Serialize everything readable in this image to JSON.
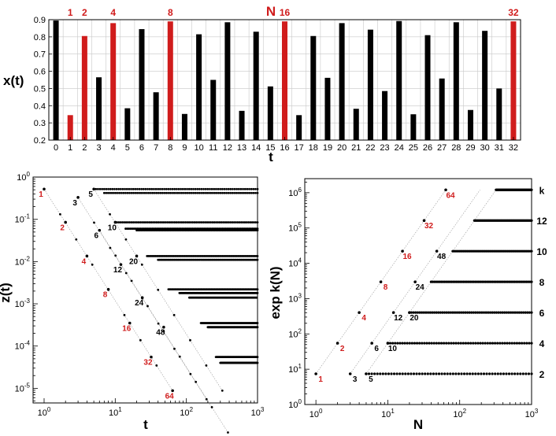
{
  "chart_data": [
    {
      "type": "bar",
      "title": "N",
      "xlabel": "t",
      "ylabel": "x(t)",
      "ylim": [
        0.2,
        0.9
      ],
      "yticks": [
        "0.2",
        "0.3",
        "0.4",
        "0.5",
        "0.6",
        "0.7",
        "0.8",
        "0.9"
      ],
      "categories": [
        "0",
        "1",
        "2",
        "3",
        "4",
        "5",
        "6",
        "7",
        "8",
        "9",
        "10",
        "11",
        "12",
        "13",
        "14",
        "15",
        "16",
        "17",
        "18",
        "19",
        "20",
        "21",
        "22",
        "23",
        "24",
        "25",
        "26",
        "27",
        "28",
        "29",
        "30",
        "31",
        "32"
      ],
      "values": [
        0.895,
        0.345,
        0.805,
        0.565,
        0.88,
        0.385,
        0.845,
        0.478,
        0.89,
        0.352,
        0.815,
        0.55,
        0.885,
        0.37,
        0.83,
        0.512,
        0.89,
        0.345,
        0.805,
        0.562,
        0.88,
        0.382,
        0.842,
        0.485,
        0.892,
        0.35,
        0.81,
        0.558,
        0.885,
        0.375,
        0.835,
        0.5,
        0.89
      ],
      "highlight_categories": [
        "1",
        "2",
        "4",
        "8",
        "16",
        "32"
      ],
      "highlight_labels": [
        "1",
        "2",
        "4",
        "8",
        "16",
        "32"
      ],
      "colors": {
        "normal": "#000000",
        "highlight": "#d01c1c"
      }
    },
    {
      "type": "scatter",
      "xscale": "log",
      "yscale": "log",
      "xlabel": "t",
      "ylabel": "z(t)",
      "xlim": [
        0.7,
        1000
      ],
      "ylim": [
        4.5e-06,
        1
      ],
      "xticks": [
        "10^0",
        "10^1",
        "10^2",
        "10^3"
      ],
      "yticks": [
        "10^-5",
        "10^-4",
        "10^-3",
        "10^-2",
        "10^-1",
        "10^0"
      ],
      "bands": [
        0.52,
        0.42,
        0.085,
        0.06,
        0.055,
        0.0135,
        0.011,
        0.0022,
        0.0018,
        0.0014,
        0.00035,
        0.00028,
        5.5e-05,
        4e-05
      ],
      "labeled_points": [
        {
          "label": "1",
          "t": 1,
          "z": 0.52,
          "color": "red"
        },
        {
          "label": "2",
          "t": 2,
          "z": 0.085,
          "color": "red"
        },
        {
          "label": "4",
          "t": 4,
          "z": 0.0135,
          "color": "red"
        },
        {
          "label": "8",
          "t": 8,
          "z": 0.0022,
          "color": "red"
        },
        {
          "label": "16",
          "t": 16,
          "z": 0.00035,
          "color": "red"
        },
        {
          "label": "32",
          "t": 32,
          "z": 5.5e-05,
          "color": "red"
        },
        {
          "label": "64",
          "t": 64,
          "z": 8.8e-06,
          "color": "red"
        },
        {
          "label": "3",
          "t": 3,
          "z": 0.33,
          "color": "black"
        },
        {
          "label": "5",
          "t": 5,
          "z": 0.52,
          "color": "black"
        },
        {
          "label": "6",
          "t": 6,
          "z": 0.055,
          "color": "black"
        },
        {
          "label": "10",
          "t": 10,
          "z": 0.085,
          "color": "black"
        },
        {
          "label": "12",
          "t": 12,
          "z": 0.0085,
          "color": "black"
        },
        {
          "label": "20",
          "t": 20,
          "z": 0.0135,
          "color": "black"
        },
        {
          "label": "24",
          "t": 24,
          "z": 0.0014,
          "color": "black"
        },
        {
          "label": "48",
          "t": 48,
          "z": 0.00028,
          "color": "black"
        }
      ],
      "guide_lines": [
        {
          "from": [
            1,
            0.52
          ],
          "to": [
            64,
            8.8e-06
          ]
        },
        {
          "from": [
            3,
            0.33
          ],
          "to": [
            192,
            5.5e-06
          ]
        },
        {
          "from": [
            5,
            0.52
          ],
          "to": [
            320,
            8.8e-06
          ]
        },
        {
          "from": [
            6,
            0.055
          ],
          "to": [
            384,
            9e-07
          ]
        }
      ]
    },
    {
      "type": "scatter",
      "xscale": "log",
      "yscale": "log",
      "xlabel": "N",
      "ylabel": "exp k(N)",
      "xlim": [
        0.7,
        1000
      ],
      "ylim": [
        1,
        2500000
      ],
      "xticks": [
        "10^0",
        "10^1",
        "10^2",
        "10^3"
      ],
      "yticks": [
        "10^0",
        "10^1",
        "10^2",
        "10^3",
        "10^4",
        "10^5",
        "10^6"
      ],
      "k_levels": [
        {
          "k": "2",
          "value": 7.4
        },
        {
          "k": "4",
          "value": 54.6
        },
        {
          "k": "6",
          "value": 403
        },
        {
          "k": "8",
          "value": 2981
        },
        {
          "k": "10",
          "value": 22026
        },
        {
          "k": "12",
          "value": 162755
        },
        {
          "k": "k",
          "value": 1202604
        }
      ],
      "labeled_points": [
        {
          "label": "1",
          "N": 1,
          "y": 7.4,
          "color": "red"
        },
        {
          "label": "2",
          "N": 2,
          "y": 54.6,
          "color": "red"
        },
        {
          "label": "4",
          "N": 4,
          "y": 403,
          "color": "red"
        },
        {
          "label": "8",
          "N": 8,
          "y": 2981,
          "color": "red"
        },
        {
          "label": "16",
          "N": 16,
          "y": 22026,
          "color": "red"
        },
        {
          "label": "32",
          "N": 32,
          "y": 162755,
          "color": "red"
        },
        {
          "label": "64",
          "N": 64,
          "y": 1202604,
          "color": "red"
        },
        {
          "label": "3",
          "N": 3,
          "y": 7.4,
          "color": "black"
        },
        {
          "label": "5",
          "N": 5,
          "y": 7.4,
          "color": "black"
        },
        {
          "label": "6",
          "N": 6,
          "y": 54.6,
          "color": "black"
        },
        {
          "label": "10",
          "N": 10,
          "y": 54.6,
          "color": "black"
        },
        {
          "label": "12",
          "N": 12,
          "y": 403,
          "color": "black"
        },
        {
          "label": "20",
          "N": 20,
          "y": 403,
          "color": "black"
        },
        {
          "label": "24",
          "N": 24,
          "y": 2981,
          "color": "black"
        },
        {
          "label": "48",
          "N": 48,
          "y": 22026,
          "color": "black"
        }
      ]
    }
  ]
}
